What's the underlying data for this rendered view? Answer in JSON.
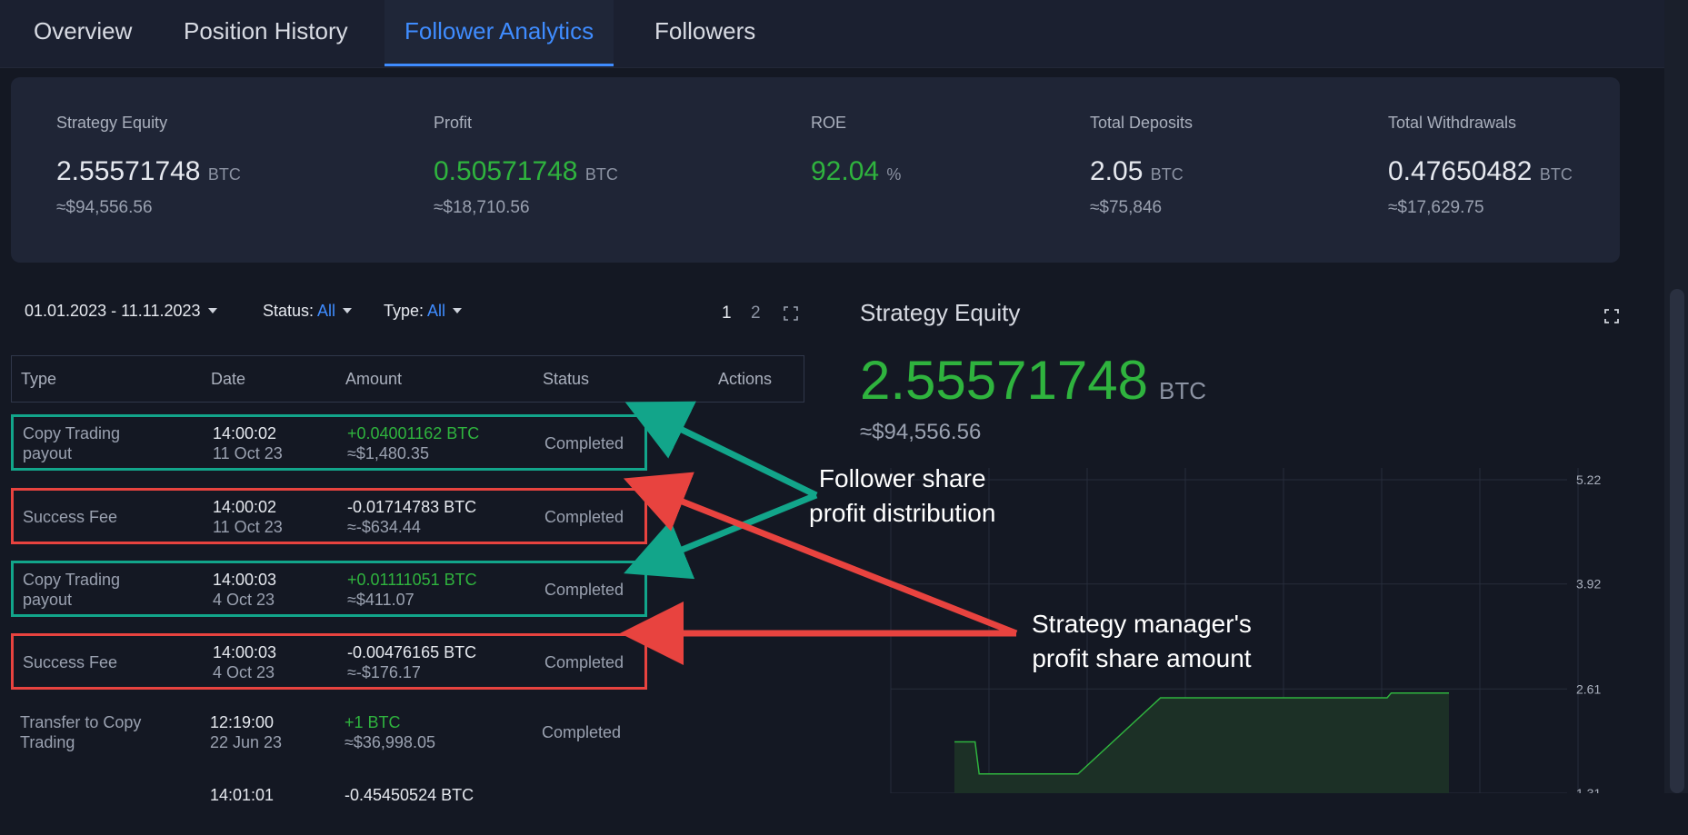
{
  "tabs": [
    "Overview",
    "Position History",
    "Follower Analytics",
    "Followers"
  ],
  "summary": [
    {
      "label": "Strategy Equity",
      "value": "2.55571748",
      "unit": "BTC",
      "usd": "≈$94,556.56",
      "color": "white"
    },
    {
      "label": "Profit",
      "value": "0.50571748",
      "unit": "BTC",
      "usd": "≈$18,710.56",
      "color": "green"
    },
    {
      "label": "ROE",
      "value": "92.04",
      "unit": "%",
      "usd": "",
      "color": "green"
    },
    {
      "label": "Total Deposits",
      "value": "2.05",
      "unit": "BTC",
      "usd": "≈$75,846",
      "color": "white"
    },
    {
      "label": "Total Withdrawals",
      "value": "0.47650482",
      "unit": "BTC",
      "usd": "≈$17,629.75",
      "color": "white"
    }
  ],
  "filters": {
    "date_range": "01.01.2023 - 11.11.2023",
    "status_label": "Status:",
    "status_value": "All",
    "type_label": "Type:",
    "type_value": "All"
  },
  "pagination": {
    "pages": [
      "1",
      "2"
    ],
    "current": "1"
  },
  "table": {
    "headers": [
      "Type",
      "Date",
      "Amount",
      "Status",
      "Actions"
    ],
    "rows": [
      {
        "type": "Copy Trading payout",
        "time": "14:00:02",
        "date": "11 Oct 23",
        "amount": "+0.04001162 BTC",
        "usd": "≈$1,480.35",
        "status": "Completed",
        "highlight": "teal",
        "sign": "pos"
      },
      {
        "type": "Success Fee",
        "time": "14:00:02",
        "date": "11 Oct 23",
        "amount": "-0.01714783 BTC",
        "usd": "≈-$634.44",
        "status": "Completed",
        "highlight": "red",
        "sign": "neg"
      },
      {
        "type": "Copy Trading payout",
        "time": "14:00:03",
        "date": "4 Oct 23",
        "amount": "+0.01111051 BTC",
        "usd": "≈$411.07",
        "status": "Completed",
        "highlight": "teal",
        "sign": "pos"
      },
      {
        "type": "Success Fee",
        "time": "14:00:03",
        "date": "4 Oct 23",
        "amount": "-0.00476165 BTC",
        "usd": "≈-$176.17",
        "status": "Completed",
        "highlight": "red",
        "sign": "neg"
      },
      {
        "type": "Transfer to Copy Trading",
        "time": "12:19:00",
        "date": "22 Jun 23",
        "amount": "+1 BTC",
        "usd": "≈$36,998.05",
        "status": "Completed",
        "highlight": "none",
        "sign": "pos"
      },
      {
        "type": "",
        "time": "14:01:01",
        "date": "",
        "amount": "-0.45450524 BTC",
        "usd": "",
        "status": "",
        "highlight": "none",
        "sign": "neg"
      }
    ]
  },
  "chart_panel": {
    "title": "Strategy Equity",
    "value": "2.55571748",
    "unit": "BTC",
    "usd": "≈$94,556.56"
  },
  "chart_data": {
    "type": "area",
    "title": "Strategy Equity",
    "y_ticks": [
      "5.22",
      "3.92",
      "2.61",
      "1.31"
    ],
    "ylim": [
      1.31,
      5.22
    ],
    "grid": true,
    "x": [
      0,
      0.1,
      0.12,
      0.14,
      0.6,
      1.0,
      1.5,
      1.8,
      2.1,
      2.12,
      2.2,
      2.4
    ],
    "values": [
      1.95,
      1.95,
      1.55,
      1.55,
      1.55,
      2.5,
      2.5,
      2.5,
      2.5,
      2.56,
      2.56,
      2.56
    ],
    "colors": {
      "line": "#2fb33e",
      "fill": "#1c3026"
    }
  },
  "annotations": {
    "follower_share": "Follower share\nprofit distribution",
    "manager_share": "Strategy manager's\nprofit share amount",
    "colors": {
      "teal": "#12a58a",
      "red": "#e8433f"
    }
  }
}
